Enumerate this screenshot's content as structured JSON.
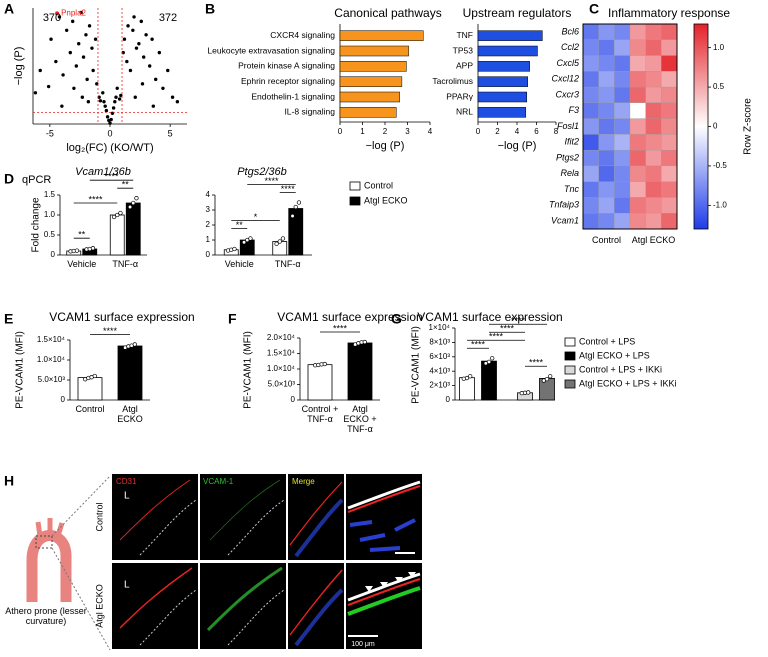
{
  "chart_data": [
    {
      "panel": "A",
      "type": "scatter",
      "x": [
        -6.2,
        -5.8,
        -5.1,
        -4.9,
        -4.5,
        -4.2,
        -3.9,
        -3.6,
        -3.3,
        -3.1,
        -2.8,
        -2.6,
        -2.4,
        -2.2,
        -2.0,
        -1.9,
        -1.7,
        -1.5,
        -1.4,
        -1.2,
        -1.1,
        -0.9,
        -0.8,
        -0.6,
        -0.5,
        -0.4,
        -0.3,
        -0.2,
        -0.1,
        0,
        0.1,
        0.2,
        0.3,
        0.4,
        0.5,
        0.6,
        0.8,
        0.9,
        1.1,
        1.2,
        1.4,
        1.5,
        1.7,
        1.9,
        2.0,
        2.2,
        2.4,
        2.6,
        2.8,
        3.0,
        3.3,
        3.5,
        3.8,
        4.1,
        4.4,
        4.8,
        5.2,
        5.6,
        -3.0,
        -2.3,
        -1.8,
        2.1,
        2.7,
        -4.0,
        3.6
      ],
      "values": [
        3.5,
        6.0,
        4.2,
        9.5,
        7.0,
        12.0,
        5.5,
        10.5,
        8.0,
        11.5,
        6.5,
        9.0,
        12.5,
        7.5,
        10.0,
        5.0,
        11.0,
        8.5,
        6.0,
        9.5,
        4.5,
        3.0,
        2.6,
        3.5,
        2.5,
        2.0,
        1.5,
        0.8,
        0.4,
        0.1,
        0.5,
        1.2,
        1.8,
        2.5,
        3.0,
        4.0,
        2.8,
        3.2,
        8.0,
        9.5,
        7.0,
        11.0,
        6.0,
        10.5,
        12.0,
        8.5,
        9.0,
        11.5,
        7.5,
        10.0,
        6.5,
        9.5,
        5.0,
        8.0,
        4.0,
        6.0,
        3.0,
        2.5,
        4.0,
        3.0,
        2.5,
        3.0,
        4.5,
        2.0,
        2.0
      ],
      "color": "#000000",
      "xlim": [
        -6.4,
        6.4
      ],
      "xticks": [
        -5,
        0,
        5
      ],
      "ylim": [
        0,
        13
      ],
      "xlabel": "log₂(FC) (KO/WT)",
      "ylabel": "−log (P)",
      "thresholds": {
        "x": [
          -1,
          1
        ],
        "y": [
          1.3
        ],
        "color": "#e8231f"
      },
      "highlight": {
        "label": "Pnpla2",
        "x": -4.4,
        "y": 12.4,
        "color": "#e8231f"
      },
      "annotations": [
        "370",
        "372"
      ]
    },
    {
      "panel": "B",
      "type": "bar",
      "orientation": "horizontal",
      "title": "Canonical pathways",
      "categories": [
        "CXCR4 signaling",
        "Leukocyte extravasation signaling",
        "Protein kinase A signaling",
        "Ephrin receptor signaling",
        "Endothelin-1 signaling",
        "IL-8 signaling"
      ],
      "values": [
        3.7,
        3.05,
        2.95,
        2.75,
        2.65,
        2.5
      ],
      "color": "#f7941d",
      "xlim": [
        0,
        4
      ],
      "xticks": [
        0,
        1,
        2,
        3,
        4
      ],
      "xlabel": "−log (P)"
    },
    {
      "type": "bar",
      "orientation": "horizontal",
      "title": "Upstream regulators",
      "categories": [
        "TNF",
        "TP53",
        "APP",
        "Tacrolimus",
        "PPARγ",
        "NRL"
      ],
      "values": [
        6.6,
        6.1,
        5.3,
        5.1,
        5.0,
        4.9
      ],
      "color": "#1f4fe0",
      "xlim": [
        0,
        8
      ],
      "xticks": [
        0,
        2,
        4,
        6,
        8
      ],
      "xlabel": "−log (P)"
    },
    {
      "panel": "C",
      "type": "heatmap",
      "title": "Inflammatory response",
      "rows": [
        "Bcl6",
        "Ccl2",
        "Cxcl5",
        "Cxcl12",
        "Cxcr3",
        "F3",
        "Fosl1",
        "Ifit2",
        "Ptgs2",
        "Rela",
        "Tnc",
        "Tnfaip3",
        "Vcam1"
      ],
      "column_groups": [
        "Control",
        "Atgl ECKO"
      ],
      "values": [
        [
          -0.9,
          -0.7,
          -0.8,
          0.6,
          0.8,
          0.9
        ],
        [
          -0.8,
          -0.9,
          -0.6,
          0.7,
          0.9,
          0.6
        ],
        [
          -0.7,
          -0.8,
          -0.9,
          0.5,
          0.6,
          1.2
        ],
        [
          -0.9,
          -0.6,
          -0.8,
          0.8,
          0.7,
          0.5
        ],
        [
          -0.8,
          -0.7,
          -0.9,
          0.9,
          0.6,
          0.7
        ],
        [
          -0.9,
          -0.8,
          -0.6,
          0.0,
          0.9,
          0.8
        ],
        [
          -0.7,
          -0.9,
          -0.8,
          0.6,
          0.9,
          0.7
        ],
        [
          -1.1,
          -0.7,
          -0.5,
          0.8,
          0.7,
          0.6
        ],
        [
          -0.8,
          -0.9,
          -0.7,
          0.9,
          0.6,
          0.8
        ],
        [
          -0.6,
          -1.0,
          -0.8,
          0.7,
          0.8,
          0.5
        ],
        [
          -0.9,
          -0.7,
          -0.8,
          0.5,
          0.9,
          0.8
        ],
        [
          -0.8,
          -0.6,
          -0.9,
          0.8,
          0.7,
          0.6
        ],
        [
          -0.9,
          -0.8,
          -0.6,
          0.7,
          0.6,
          0.9
        ]
      ],
      "zlim": [
        -1.3,
        1.3
      ],
      "zticks": [
        {
          "value": -1,
          "label": "-1.0"
        },
        -0.5,
        0,
        0.5,
        {
          "value": 1,
          "label": "1.0"
        }
      ],
      "colors": [
        "#1e3ce8",
        "#ffffff",
        "#e3232a"
      ],
      "colorbar_label": "Row Z-score"
    },
    {
      "panel": "D",
      "note": "qPCR",
      "type": "bar",
      "title": "Vcam1/36b",
      "ylabel": "Fold change",
      "categories": [
        "Vehicle",
        "TNF-α"
      ],
      "series": [
        {
          "color": "#ffffff",
          "values": [
            0.1,
            1.0
          ],
          "points": [
            [
              0.09,
              0.1,
              0.11
            ],
            [
              0.95,
              1.0,
              1.05
            ]
          ]
        },
        {
          "color": "#000000",
          "values": [
            0.15,
            1.3
          ],
          "points": [
            [
              0.14,
              0.15,
              0.17
            ],
            [
              1.2,
              1.3,
              1.42
            ]
          ]
        }
      ],
      "ylim": [
        0,
        1.5
      ],
      "yticks": [
        0,
        0.5,
        {
          "value": 1,
          "label": "1.0"
        },
        1.5
      ],
      "significance": [
        {
          "bars": [
            0,
            1
          ],
          "label": "**"
        },
        {
          "bars": [
            0,
            2
          ],
          "label": "****"
        },
        {
          "bars": [
            2,
            3
          ],
          "label": "**"
        },
        {
          "bars": [
            1,
            3
          ],
          "label": "****"
        }
      ]
    },
    {
      "type": "bar",
      "title": "Ptgs2/36b",
      "categories": [
        "Vehicle",
        "TNF-α"
      ],
      "series": [
        {
          "name": "Control",
          "color": "#ffffff",
          "values": [
            0.35,
            0.9
          ],
          "points": [
            [
              0.3,
              0.35,
              0.4
            ],
            [
              0.75,
              0.9,
              1.1
            ]
          ]
        },
        {
          "name": "Atgl ECKO",
          "color": "#000000",
          "values": [
            1.0,
            3.1
          ],
          "points": [
            [
              0.85,
              1.0,
              1.1
            ],
            [
              2.6,
              3.2,
              3.5
            ]
          ]
        }
      ],
      "ylim": [
        0,
        4
      ],
      "yticks": [
        0,
        1,
        2,
        3,
        4
      ],
      "significance": [
        {
          "bars": [
            0,
            1
          ],
          "label": "**"
        },
        {
          "bars": [
            0,
            2
          ],
          "label": "*"
        },
        {
          "bars": [
            2,
            3
          ],
          "label": "****"
        },
        {
          "bars": [
            1,
            3
          ],
          "label": "****"
        }
      ]
    },
    {
      "panel": "E",
      "type": "bar",
      "title": "VCAM1 surface expression",
      "ylabel": "PE-VCAM1 (MFI)",
      "categories": [
        "Control",
        "Atgl ECKO"
      ],
      "values": [
        5600,
        13500
      ],
      "colors": [
        "#ffffff",
        "#000000"
      ],
      "points": [
        [
          5200,
          5500,
          5700,
          6000
        ],
        [
          13100,
          13400,
          13600,
          13900
        ]
      ],
      "ylim": [
        0,
        15000
      ],
      "yticks": [
        0,
        {
          "value": 5000,
          "label": "5.0×10³"
        },
        {
          "value": 10000,
          "label": "1.0×10⁴"
        },
        {
          "value": 15000,
          "label": "1.5×10⁴"
        }
      ],
      "significance": [
        {
          "bars": [
            0,
            1
          ],
          "label": "****"
        }
      ]
    },
    {
      "panel": "F",
      "type": "bar",
      "title": "VCAM1 surface expression",
      "ylabel": "PE-VCAM1 (MFI)",
      "categories": [
        "Control + TNF-α",
        "Atgl ECKO + TNF-α"
      ],
      "values": [
        11400,
        18400
      ],
      "colors": [
        "#ffffff",
        "#000000"
      ],
      "points": [
        [
          11200,
          11300,
          11500,
          11600
        ],
        [
          17900,
          18300,
          18600,
          18700
        ]
      ],
      "ylim": [
        0,
        20000
      ],
      "yticks": [
        0,
        {
          "value": 5000,
          "label": "5.0×10³"
        },
        {
          "value": 10000,
          "label": "1.0×10⁴"
        },
        {
          "value": 15000,
          "label": "1.5×10⁴"
        },
        {
          "value": 20000,
          "label": "2.0×10⁴"
        }
      ],
      "significance": [
        {
          "bars": [
            0,
            1
          ],
          "label": "****"
        }
      ]
    },
    {
      "panel": "G",
      "type": "bar",
      "title": "VCAM1 surface expression",
      "ylabel": "PE-VCAM1 (MFI)",
      "series": [
        {
          "name": "Control + LPS",
          "color": "#ffffff",
          "values": [
            3100
          ],
          "points": [
            [
              2950,
              3050,
              3300
            ]
          ]
        },
        {
          "name": "Atgl ECKO + LPS",
          "color": "#000000",
          "values": [
            5400
          ],
          "points": [
            [
              5100,
              5300,
              5800
            ]
          ]
        },
        {
          "name": "Control + LPS + IKKi",
          "color": "#d9d9d9",
          "values": [
            1000
          ],
          "points": [
            [
              950,
              1000,
              1050
            ]
          ]
        },
        {
          "name": "Atgl ECKO + LPS + IKKi",
          "color": "#737373",
          "values": [
            3000
          ],
          "points": [
            [
              2700,
              2900,
              3300
            ]
          ]
        }
      ],
      "ylim": [
        0,
        10000
      ],
      "yticks": [
        0,
        {
          "value": 2000,
          "label": "2×10³"
        },
        {
          "value": 4000,
          "label": "4×10³"
        },
        {
          "value": 6000,
          "label": "6×10³"
        },
        {
          "value": 8000,
          "label": "8×10³"
        },
        {
          "value": 10000,
          "label": "1×10⁴"
        }
      ],
      "significance": [
        {
          "bars": [
            2,
            3
          ],
          "label": "****"
        },
        {
          "bars": [
            0,
            1
          ],
          "label": "****"
        },
        {
          "bars": [
            0,
            2
          ],
          "label": "****"
        },
        {
          "bars": [
            1,
            2
          ],
          "label": "****"
        },
        {
          "bars": [
            1,
            3
          ],
          "label": "****"
        }
      ]
    }
  ],
  "micrograph": {
    "panel": "H",
    "channels": [
      "CD31",
      "VCAM-1",
      "Merge"
    ],
    "rows": [
      "Control",
      "Atgl ECKO"
    ],
    "lumen": "L",
    "region": "Athero prone (lesser curvature)",
    "scale": "100 μm"
  }
}
